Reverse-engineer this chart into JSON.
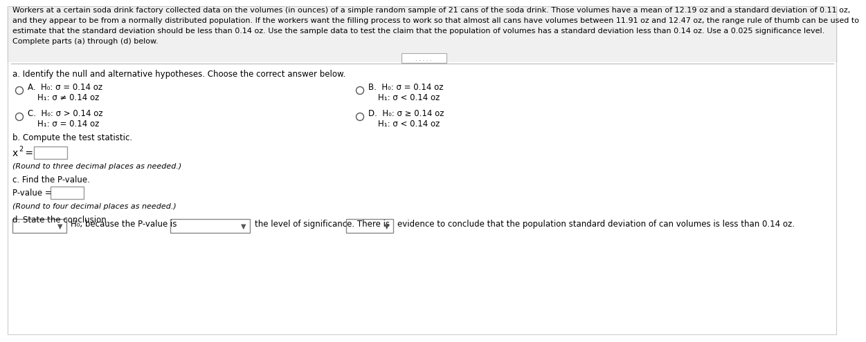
{
  "white": "#ffffff",
  "black": "#000000",
  "gray_border": "#999999",
  "light_bg": "#f5f5f5",
  "paragraph_line1": "Workers at a certain soda drink factory collected data on the volumes (in ounces) of a simple random sample of 21 cans of the soda drink. Those volumes have a mean of 12.19 oz and a standard deviation of 0.11 oz,",
  "paragraph_line2": "and they appear to be from a normally distributed population. If the workers want the filling process to work so that almost all cans have volumes between 11.91 oz and 12.47 oz, the range rule of thumb can be used to",
  "paragraph_line3": "estimate that the standard deviation should be less than 0.14 oz. Use the sample data to test the claim that the population of volumes has a standard deviation less than 0.14 oz. Use a 0.025 significance level.",
  "paragraph_line4": "Complete parts (a) through (d) below.",
  "part_a_label": "a. Identify the null and alternative hypotheses. Choose the correct answer below.",
  "optA_line1": "H₀: σ = 0.14 oz",
  "optA_line2": "H₁: σ ≠ 0.14 oz",
  "optB_line1": "H₀: σ = 0.14 oz",
  "optB_line2": "H₁: σ < 0.14 oz",
  "optC_line1": "H₀: σ > 0.14 oz",
  "optC_line2": "H₁: σ = 0.14 oz",
  "optD_line1": "H₀: σ ≥ 0.14 oz",
  "optD_line2": "H₁: σ < 0.14 oz",
  "part_b_label": "b. Compute the test statistic.",
  "chi2_prefix": "χ",
  "chi2_sup": "2",
  "chi2_eq": " =",
  "round3_note": "(Round to three decimal places as needed.)",
  "part_c_label": "c. Find the P-value.",
  "pvalue_label": "P-value =",
  "round4_note": "(Round to four decimal places as needed.)",
  "part_d_label": "d. State the conclusion.",
  "concl_mid1": "H₀, because the P-value is",
  "concl_mid2": "the level of significance. There is",
  "concl_end": "evidence to conclude that the population standard deviation of can volumes is less than 0.14 oz."
}
